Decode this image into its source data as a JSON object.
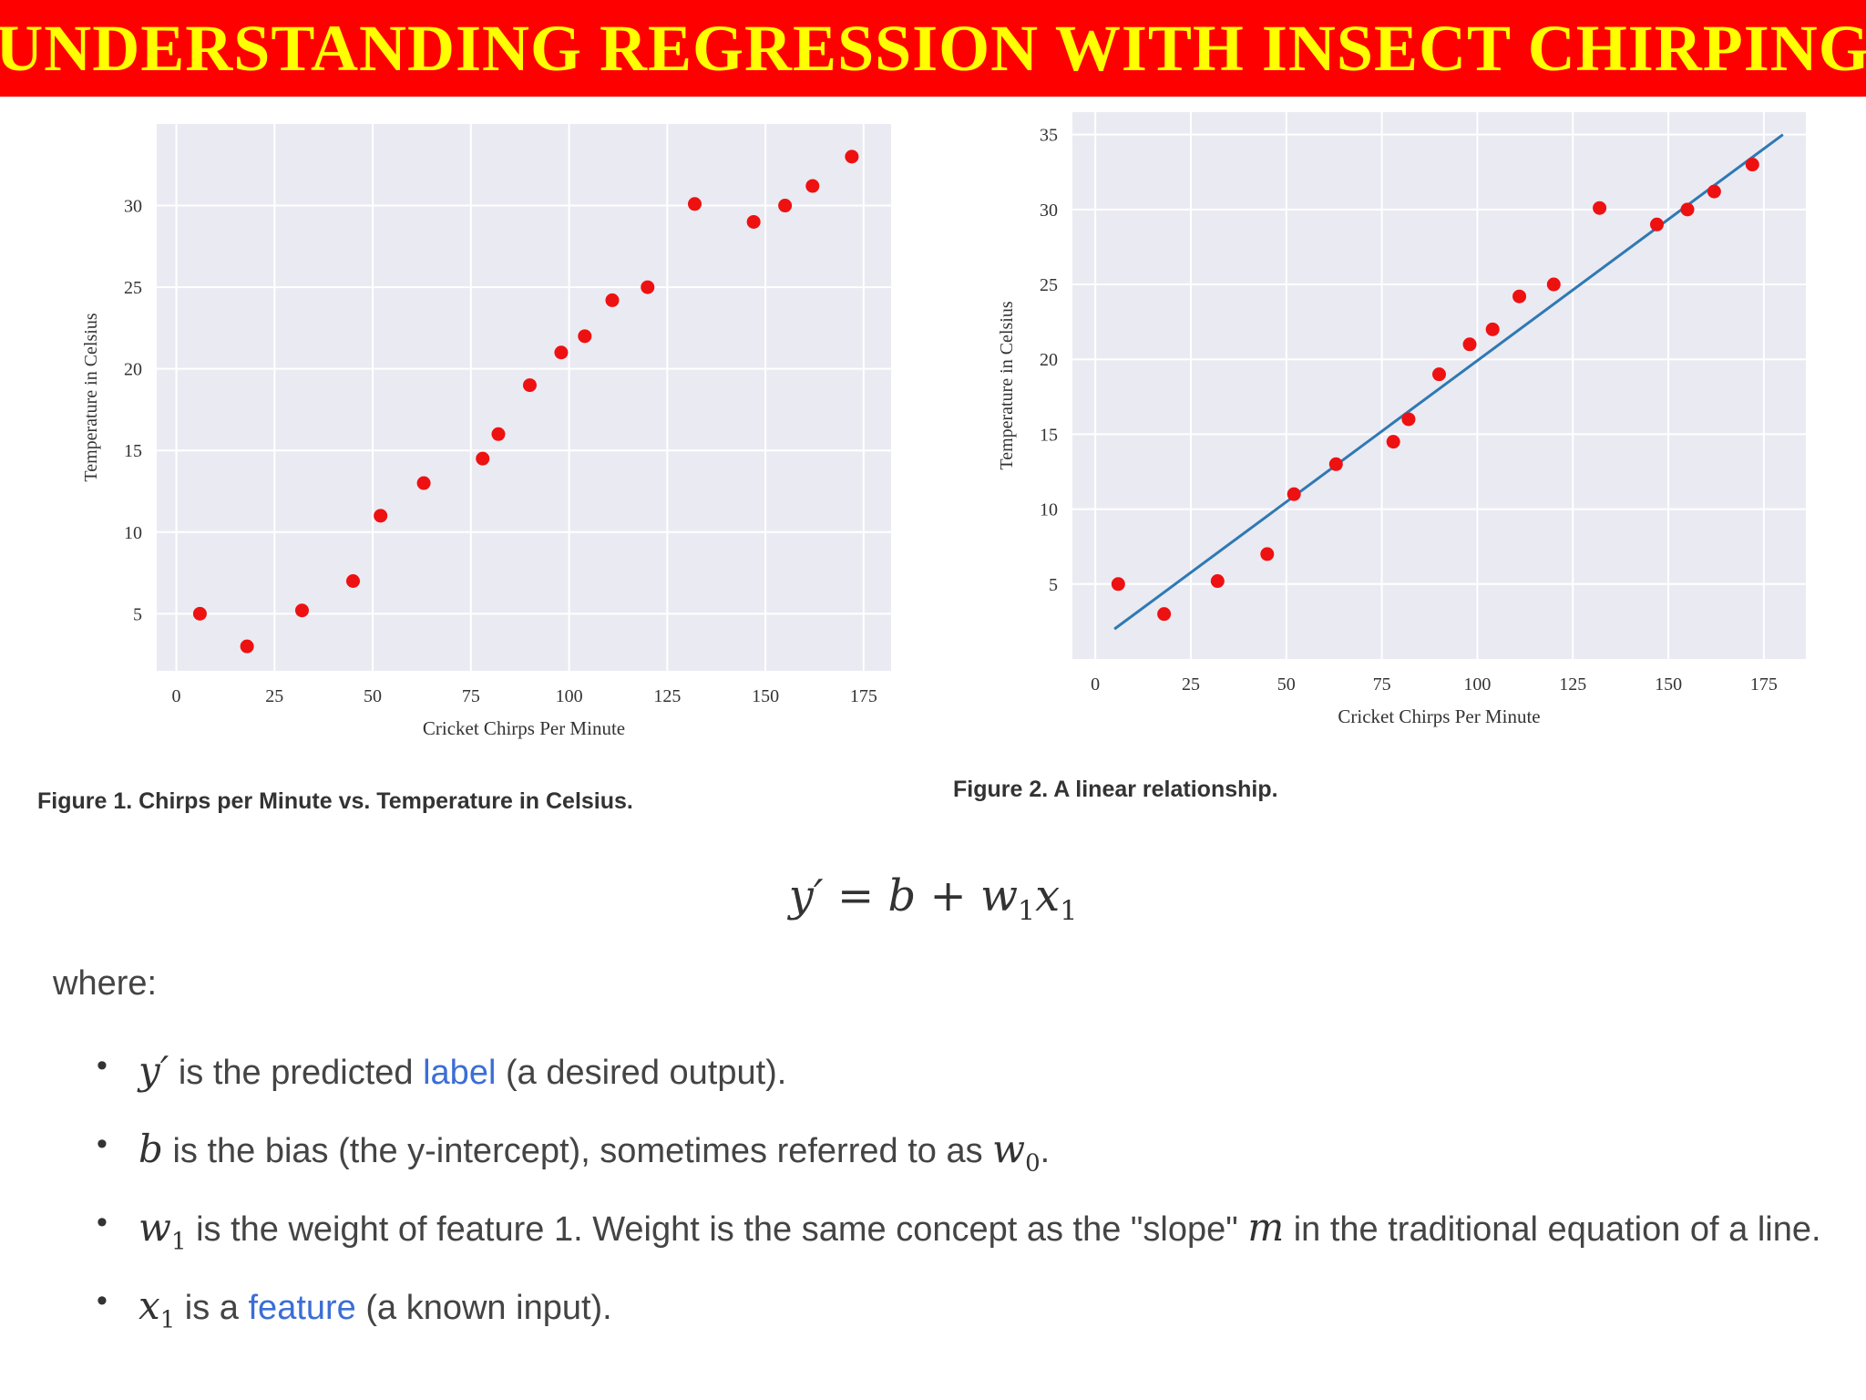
{
  "banner": {
    "title": "UNDERSTANDING REGRESSION WITH INSECT CHIRPING"
  },
  "chart_data": [
    {
      "type": "scatter",
      "title": "",
      "xlabel": "Cricket Chirps Per Minute",
      "ylabel": "Temperature in Celsius",
      "xlim": [
        -5,
        182
      ],
      "ylim": [
        1.5,
        35
      ],
      "xticks": [
        "0",
        "25",
        "50",
        "75",
        "100",
        "125",
        "150",
        "175"
      ],
      "yticks": [
        "5",
        "10",
        "15",
        "20",
        "25",
        "30"
      ],
      "grid": true,
      "point_color": "#ee1111",
      "background": "#eaeaf2",
      "series": [
        {
          "x": [
            6,
            18,
            32,
            45,
            52,
            63,
            78,
            82,
            90,
            98,
            104,
            111,
            120,
            132,
            147,
            155,
            162,
            172
          ],
          "y": [
            5,
            3,
            5.2,
            7,
            11,
            13,
            14.5,
            16,
            19,
            21,
            22,
            24.2,
            25,
            30.1,
            29,
            30,
            31.2,
            33
          ]
        }
      ],
      "caption": "Figure 1. Chirps per Minute vs. Temperature in Celsius."
    },
    {
      "type": "scatter",
      "title": "",
      "xlabel": "Cricket Chirps Per Minute",
      "ylabel": "Temperature in Celsius",
      "xlim": [
        -6,
        186
      ],
      "ylim": [
        0,
        36.5
      ],
      "xticks": [
        "0",
        "25",
        "50",
        "75",
        "100",
        "125",
        "150",
        "175"
      ],
      "yticks": [
        "5",
        "10",
        "15",
        "20",
        "25",
        "30",
        "35"
      ],
      "grid": true,
      "point_color": "#ee1111",
      "line_color": "#2f79b3",
      "background": "#eaeaf2",
      "series": [
        {
          "x": [
            6,
            18,
            32,
            45,
            52,
            63,
            78,
            82,
            90,
            98,
            104,
            111,
            120,
            132,
            147,
            155,
            162,
            172
          ],
          "y": [
            5,
            3,
            5.2,
            7,
            11,
            13,
            14.5,
            16,
            19,
            21,
            22,
            24.2,
            25,
            30.1,
            29,
            30,
            31.2,
            33
          ]
        }
      ],
      "fit_line": {
        "x": [
          5,
          180
        ],
        "y": [
          2,
          35
        ]
      },
      "caption": "Figure 2. A linear relationship."
    }
  ],
  "equation": {
    "lhs": "y′",
    "eq": "=",
    "b": "b",
    "plus": "+",
    "w": "w",
    "w_sub": "1",
    "x": "x",
    "x_sub": "1"
  },
  "where_label": "where:",
  "definitions": [
    {
      "sym": "y′",
      "sub": "",
      "pre": "is the predicted",
      "link": "label",
      "post": "(a desired output)."
    },
    {
      "sym": "b",
      "sub": "",
      "pre": "is the bias (the y-intercept), sometimes referred to as",
      "sym2": "w",
      "sub2": "0",
      "post": "."
    },
    {
      "sym": "w",
      "sub": "1",
      "pre": "is the weight of feature 1. Weight is the same concept as the \"slope\"",
      "sym2": "m",
      "post": "in the traditional equation of a line."
    },
    {
      "sym": "x",
      "sub": "1",
      "pre": "is a",
      "link": "feature",
      "post": "(a known input)."
    }
  ]
}
